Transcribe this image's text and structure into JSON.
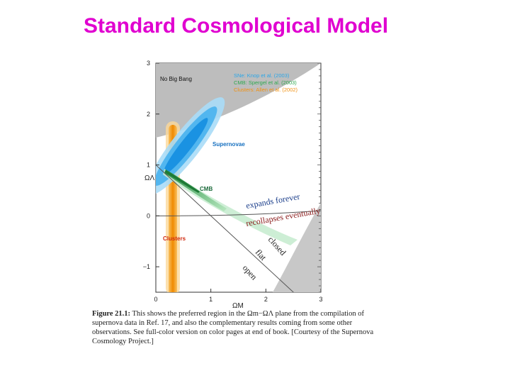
{
  "slide": {
    "title": "Standard Cosmological Model"
  },
  "caption": {
    "lead": "Figure 21.1:",
    "text": " This shows the preferred region in the Ωm−ΩΛ plane from the compilation of supernova data in Ref. 17, and also the complementary results coming from some other observations. See full-color version on color pages at end of book. [Courtesy of the Supernova Cosmology Project.]"
  },
  "colors": {
    "title": "#e000d0",
    "supernova": "#1e9ee8",
    "cmb": "#2fa84f",
    "clusters": "#f09010",
    "forbidden": "#bdbdbd"
  },
  "chart_data": {
    "type": "contour",
    "xlabel": "ΩM",
    "ylabel": "ΩΛ",
    "xlim": [
      0,
      3
    ],
    "ylim": [
      -1.5,
      3
    ],
    "x_ticks": [
      "0",
      "1",
      "2",
      "3"
    ],
    "y_ticks": [
      "3",
      "2",
      "1",
      "0",
      "−1"
    ],
    "legend": [
      {
        "text": "SNe:  Knop et al. (2003)",
        "color": "#2aa6e8"
      },
      {
        "text": "CMB:  Spergel et al. (2003)",
        "color": "#2fa84f"
      },
      {
        "text": "Clusters: Allen et al. (2002)",
        "color": "#f09010"
      }
    ],
    "region_labels": {
      "no_big_bang": "No Big Bang",
      "supernovae": "Supernovae",
      "cmb": "CMB",
      "clusters": "Clusters"
    },
    "annotations": {
      "expands": "expands forever",
      "recollapses": "recollapses eventually",
      "closed": "closed",
      "flat": "flat",
      "open": "open"
    },
    "constraints": {
      "supernovae": {
        "center": [
          0.46,
          0.95
        ]
      },
      "cmb": {
        "center": [
          0.3,
          0.7
        ]
      },
      "clusters": {
        "center": [
          0.27,
          0.5
        ]
      }
    },
    "boundary_lines": {
      "flat": {
        "from": [
          0,
          1
        ],
        "to": [
          3,
          -2
        ]
      },
      "expands_recollapses": {
        "from": [
          0,
          0
        ],
        "to": [
          3,
          0.1
        ]
      }
    }
  }
}
